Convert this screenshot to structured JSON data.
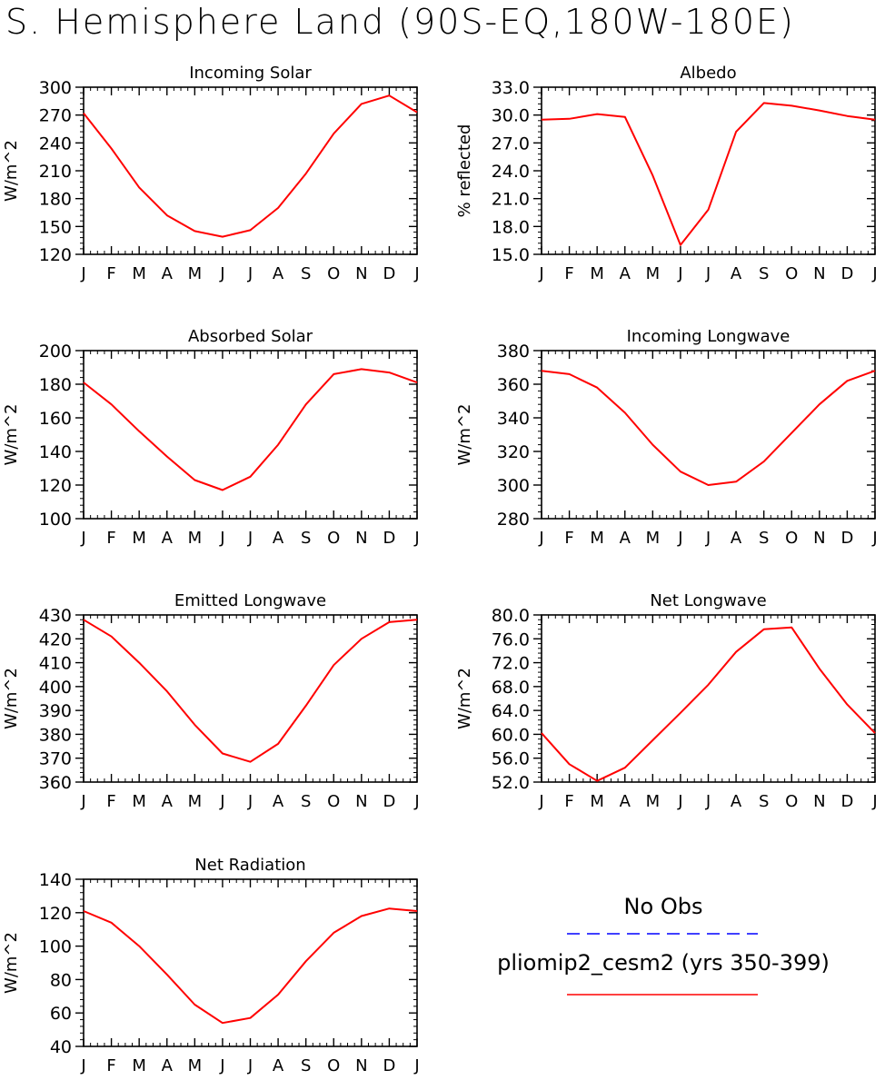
{
  "title": "S. Hemisphere Land (90S-EQ,180W-180E)",
  "months": [
    "J",
    "F",
    "M",
    "A",
    "M",
    "J",
    "J",
    "A",
    "S",
    "O",
    "N",
    "D",
    "J"
  ],
  "legend": {
    "obs_label": "No Obs",
    "model_label": "pliomip2_cesm2 (yrs 350-399)",
    "obs_color": "#0000ff",
    "model_color": "#ff0000"
  },
  "chart_data": [
    {
      "type": "line",
      "title": "Incoming Solar",
      "ylabel": "W/m^2",
      "ylim": [
        120,
        300
      ],
      "yticks": [
        120,
        150,
        180,
        210,
        240,
        270,
        300
      ],
      "ytick_labels": [
        "120",
        "150",
        "180",
        "210",
        "240",
        "270",
        "300"
      ],
      "categories": [
        "J",
        "F",
        "M",
        "A",
        "M",
        "J",
        "J",
        "A",
        "S",
        "O",
        "N",
        "D",
        "J"
      ],
      "series": [
        {
          "name": "pliomip2_cesm2 (yrs 350-399)",
          "values": [
            272,
            234,
            192,
            162,
            145,
            139,
            146,
            170,
            207,
            250,
            282,
            291,
            273
          ]
        }
      ]
    },
    {
      "type": "line",
      "title": "Albedo",
      "ylabel": "% reflected",
      "ylim": [
        15,
        33
      ],
      "yticks": [
        15,
        18,
        21,
        24,
        27,
        30,
        33
      ],
      "ytick_labels": [
        "15.0",
        "18.0",
        "21.0",
        "24.0",
        "27.0",
        "30.0",
        "33.0"
      ],
      "categories": [
        "J",
        "F",
        "M",
        "A",
        "M",
        "J",
        "J",
        "A",
        "S",
        "O",
        "N",
        "D",
        "J"
      ],
      "series": [
        {
          "name": "pliomip2_cesm2 (yrs 350-399)",
          "values": [
            29.5,
            29.6,
            30.1,
            29.8,
            23.5,
            16.0,
            19.8,
            28.2,
            31.3,
            31.0,
            30.5,
            29.9,
            29.5
          ]
        }
      ]
    },
    {
      "type": "line",
      "title": "Absorbed Solar",
      "ylabel": "W/m^2",
      "ylim": [
        100,
        200
      ],
      "yticks": [
        100,
        120,
        140,
        160,
        180,
        200
      ],
      "ytick_labels": [
        "100",
        "120",
        "140",
        "160",
        "180",
        "200"
      ],
      "categories": [
        "J",
        "F",
        "M",
        "A",
        "M",
        "J",
        "J",
        "A",
        "S",
        "O",
        "N",
        "D",
        "J"
      ],
      "series": [
        {
          "name": "pliomip2_cesm2 (yrs 350-399)",
          "values": [
            181,
            168,
            152,
            137,
            123,
            117,
            125,
            144,
            168,
            186,
            189,
            187,
            181
          ]
        }
      ]
    },
    {
      "type": "line",
      "title": "Incoming Longwave",
      "ylabel": "W/m^2",
      "ylim": [
        280,
        380
      ],
      "yticks": [
        280,
        300,
        320,
        340,
        360,
        380
      ],
      "ytick_labels": [
        "280",
        "300",
        "320",
        "340",
        "360",
        "380"
      ],
      "categories": [
        "J",
        "F",
        "M",
        "A",
        "M",
        "J",
        "J",
        "A",
        "S",
        "O",
        "N",
        "D",
        "J"
      ],
      "series": [
        {
          "name": "pliomip2_cesm2 (yrs 350-399)",
          "values": [
            368,
            366,
            358,
            343,
            324,
            308,
            300,
            302,
            314,
            331,
            348,
            362,
            368
          ]
        }
      ]
    },
    {
      "type": "line",
      "title": "Emitted Longwave",
      "ylabel": "W/m^2",
      "ylim": [
        360,
        430
      ],
      "yticks": [
        360,
        370,
        380,
        390,
        400,
        410,
        420,
        430
      ],
      "ytick_labels": [
        "360",
        "370",
        "380",
        "390",
        "400",
        "410",
        "420",
        "430"
      ],
      "categories": [
        "J",
        "F",
        "M",
        "A",
        "M",
        "J",
        "J",
        "A",
        "S",
        "O",
        "N",
        "D",
        "J"
      ],
      "series": [
        {
          "name": "pliomip2_cesm2 (yrs 350-399)",
          "values": [
            428,
            421,
            410,
            398,
            384,
            372,
            368.5,
            376,
            392,
            409,
            420,
            427,
            428
          ]
        }
      ]
    },
    {
      "type": "line",
      "title": "Net Longwave",
      "ylabel": "W/m^2",
      "ylim": [
        52,
        80
      ],
      "yticks": [
        52,
        56,
        60,
        64,
        68,
        72,
        76,
        80
      ],
      "ytick_labels": [
        "52.0",
        "56.0",
        "60.0",
        "64.0",
        "68.0",
        "72.0",
        "76.0",
        "80.0"
      ],
      "categories": [
        "J",
        "F",
        "M",
        "A",
        "M",
        "J",
        "J",
        "A",
        "S",
        "O",
        "N",
        "D",
        "J"
      ],
      "series": [
        {
          "name": "pliomip2_cesm2 (yrs 350-399)",
          "values": [
            60.2,
            55,
            52.2,
            54.4,
            59,
            63.6,
            68.3,
            73.8,
            77.6,
            77.9,
            71,
            65,
            60.2
          ]
        }
      ]
    },
    {
      "type": "line",
      "title": "Net Radiation",
      "ylabel": "W/m^2",
      "ylim": [
        40,
        140
      ],
      "yticks": [
        40,
        60,
        80,
        100,
        120,
        140
      ],
      "ytick_labels": [
        "40",
        "60",
        "80",
        "100",
        "120",
        "140"
      ],
      "categories": [
        "J",
        "F",
        "M",
        "A",
        "M",
        "J",
        "J",
        "A",
        "S",
        "O",
        "N",
        "D",
        "J"
      ],
      "series": [
        {
          "name": "pliomip2_cesm2 (yrs 350-399)",
          "values": [
            121,
            114,
            100,
            83,
            65,
            54,
            57,
            71,
            91,
            108,
            118,
            122.5,
            121
          ]
        }
      ]
    }
  ]
}
